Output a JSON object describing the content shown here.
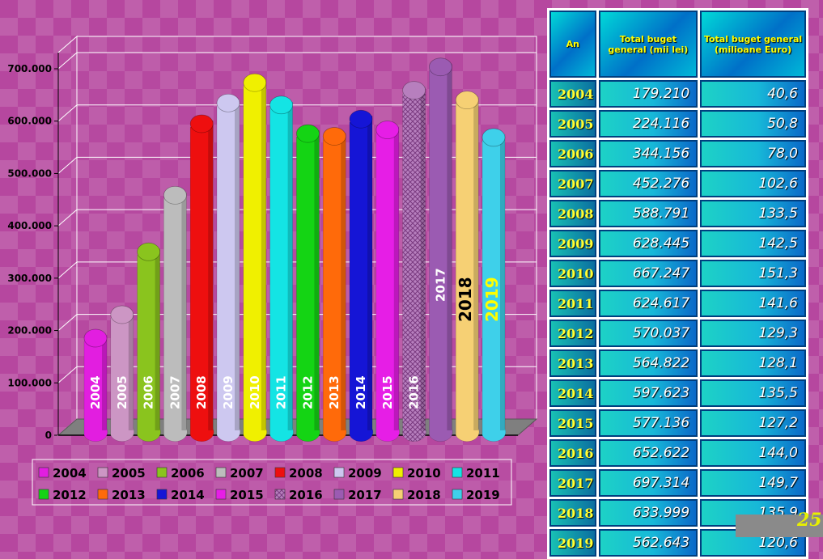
{
  "chart_data": {
    "type": "bar",
    "categories": [
      "2004",
      "2005",
      "2006",
      "2007",
      "2008",
      "2009",
      "2010",
      "2011",
      "2012",
      "2013",
      "2014",
      "2015",
      "2016",
      "2017",
      "2018",
      "2019"
    ],
    "values": [
      179210,
      224116,
      344156,
      452276,
      588791,
      628445,
      667247,
      624617,
      570037,
      564822,
      597623,
      577136,
      652622,
      697314,
      633999,
      562643
    ],
    "y_ticks": [
      "0",
      "100.000",
      "200.000",
      "300.000",
      "400.000",
      "500.000",
      "600.000",
      "700.000"
    ],
    "ylim": [
      0,
      700000
    ],
    "colors": [
      "#e21ee0",
      "#cc96c4",
      "#8ac41e",
      "#bcbcbc",
      "#ee0f0f",
      "#cdc8f0",
      "#f0f000",
      "#14e4e4",
      "#14d414",
      "#ff6a0a",
      "#1515d6",
      "#e61ee6",
      "#b77fbe",
      "#9b5bb2",
      "#f6d074",
      "#3ed0ea"
    ],
    "label_colors": [
      "#ffffff",
      "#ffffff",
      "#ffffff",
      "#ffffff",
      "#ffffff",
      "#ffffff",
      "#ffffff",
      "#ffffff",
      "#ffffff",
      "#ffffff",
      "#ffffff",
      "#ffffff",
      "#ffffff",
      "#ffffff",
      "#000000",
      "#ffff00"
    ],
    "legend": [
      "2004",
      "2005",
      "2006",
      "2007",
      "2008",
      "2009",
      "2010",
      "2011",
      "2012",
      "2013",
      "2014",
      "2015",
      "2016",
      "2017",
      "2018",
      "2019"
    ],
    "grid": true,
    "legend_position": "bottom"
  },
  "table": {
    "headers": [
      "An",
      "Total buget general (mii lei)",
      "Total buget general (milioane Euro)"
    ],
    "rows": [
      [
        "2004",
        "179.210",
        "40,6"
      ],
      [
        "2005",
        "224.116",
        "50,8"
      ],
      [
        "2006",
        "344.156",
        "78,0"
      ],
      [
        "2007",
        "452.276",
        "102,6"
      ],
      [
        "2008",
        "588.791",
        "133,5"
      ],
      [
        "2009",
        "628.445",
        "142,5"
      ],
      [
        "2010",
        "667.247",
        "151,3"
      ],
      [
        "2011",
        "624.617",
        "141,6"
      ],
      [
        "2012",
        "570.037",
        "129,3"
      ],
      [
        "2013",
        "564.822",
        "128,1"
      ],
      [
        "2014",
        "597.623",
        "135,5"
      ],
      [
        "2015",
        "577.136",
        "127,2"
      ],
      [
        "2016",
        "652.622",
        "144,0"
      ],
      [
        "2017",
        "697.314",
        "149,7"
      ],
      [
        "2018",
        "633.999",
        "135,9"
      ],
      [
        "2019",
        "562.643",
        "120,6"
      ]
    ]
  },
  "page_number": "25"
}
